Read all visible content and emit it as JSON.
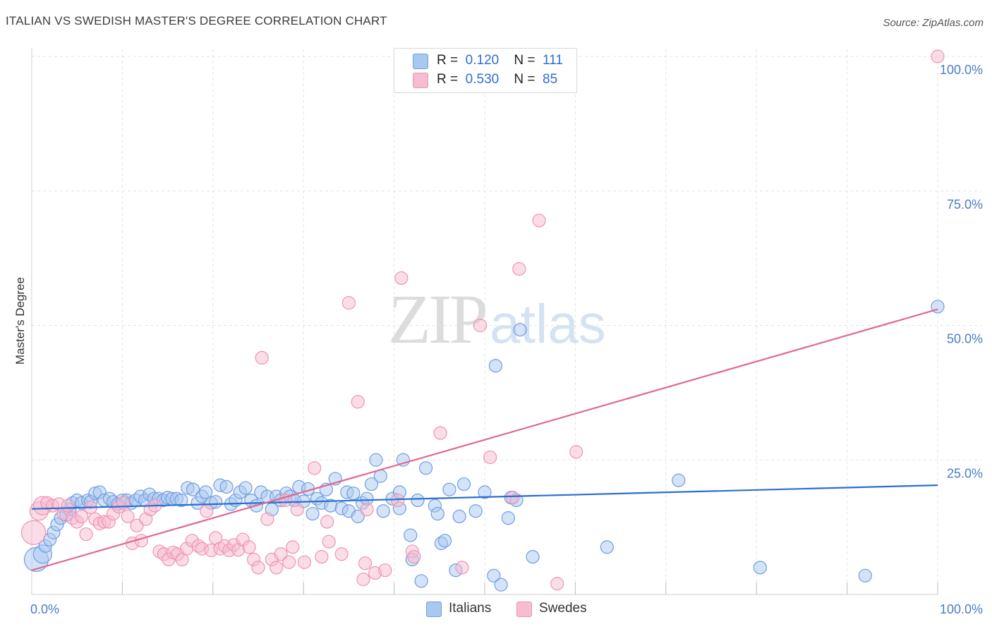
{
  "title": "ITALIAN VS SWEDISH MASTER'S DEGREE CORRELATION CHART",
  "source": "Source: ZipAtlas.com",
  "watermark": {
    "zip": "ZIP",
    "atlas": "atlas"
  },
  "legend": {
    "rows": [
      {
        "r_label": "R =",
        "r_value": "0.120",
        "n_label": "N =",
        "n_value": "111"
      },
      {
        "r_label": "R =",
        "r_value": "0.530",
        "n_label": "N =",
        "n_value": "85"
      }
    ]
  },
  "bottom_legend": [
    "Italians",
    "Swedes"
  ],
  "colors": {
    "italians_fill": "#a9c8f0",
    "italians_stroke": "#6f9ee0",
    "italians_line": "#2a6fcf",
    "swedes_fill": "#f6bcd0",
    "swedes_stroke": "#ef93b4",
    "swedes_line": "#e06892",
    "grid": "#e3e3e3",
    "tick_label": "#4a7cc7"
  },
  "chart_data": {
    "type": "scatter",
    "title": "ITALIAN VS SWEDISH MASTER'S DEGREE CORRELATION CHART",
    "xlabel": "",
    "ylabel": "Master's Degree",
    "xlim": [
      0,
      100
    ],
    "ylim": [
      0,
      100
    ],
    "x_tick_labels": [
      "0.0%",
      "100.0%"
    ],
    "y_ticks": [
      25,
      50,
      75,
      100
    ],
    "y_tick_labels": [
      "25.0%",
      "50.0%",
      "75.0%",
      "100.0%"
    ],
    "grid": true,
    "legend_position": "top-center",
    "series": [
      {
        "name": "Italians",
        "R": 0.12,
        "N": 111,
        "trend": {
          "x": [
            0,
            100
          ],
          "y": [
            15.9,
            20.3
          ]
        },
        "points": [
          [
            0.5,
            6.5
          ],
          [
            1.2,
            7.5
          ],
          [
            1.5,
            9
          ],
          [
            2,
            10.2
          ],
          [
            2.4,
            11.5
          ],
          [
            2.8,
            13
          ],
          [
            3.2,
            14.2
          ],
          [
            3.8,
            14.8
          ],
          [
            4.2,
            15.8
          ],
          [
            4.5,
            17
          ],
          [
            5,
            17.5
          ],
          [
            5.5,
            17
          ],
          [
            6.2,
            17.5
          ],
          [
            6.5,
            17.2
          ],
          [
            7,
            18.8
          ],
          [
            7.5,
            19
          ],
          [
            8,
            17.5
          ],
          [
            8.6,
            17.8
          ],
          [
            9,
            17.2
          ],
          [
            9.5,
            16.8
          ],
          [
            10,
            17.5
          ],
          [
            10.5,
            17.5
          ],
          [
            11,
            17
          ],
          [
            11.5,
            17.5
          ],
          [
            12,
            18.2
          ],
          [
            12.5,
            17.5
          ],
          [
            13,
            18.6
          ],
          [
            13.5,
            17.8
          ],
          [
            14,
            17.8
          ],
          [
            14.5,
            17.5
          ],
          [
            15,
            18
          ],
          [
            15.5,
            17.8
          ],
          [
            16,
            17.8
          ],
          [
            16.5,
            17.5
          ],
          [
            17.2,
            19.8
          ],
          [
            17.8,
            19.5
          ],
          [
            18.3,
            17
          ],
          [
            18.8,
            18.2
          ],
          [
            19.2,
            19
          ],
          [
            19.8,
            17
          ],
          [
            20.3,
            17.2
          ],
          [
            20.8,
            20.3
          ],
          [
            21.5,
            20
          ],
          [
            22,
            16.8
          ],
          [
            22.5,
            17.5
          ],
          [
            23,
            19
          ],
          [
            23.6,
            19.8
          ],
          [
            24.2,
            17.5
          ],
          [
            24.8,
            16.5
          ],
          [
            25.3,
            19
          ],
          [
            26,
            18.2
          ],
          [
            26.5,
            15.8
          ],
          [
            27,
            18.2
          ],
          [
            27.5,
            17.5
          ],
          [
            28.1,
            18.8
          ],
          [
            28.5,
            18.2
          ],
          [
            29,
            17.5
          ],
          [
            29.5,
            20
          ],
          [
            30,
            17.3
          ],
          [
            30.5,
            19.6
          ],
          [
            31,
            15
          ],
          [
            31.5,
            17.8
          ],
          [
            32,
            17
          ],
          [
            32.5,
            19.5
          ],
          [
            33,
            16.5
          ],
          [
            33.5,
            21.5
          ],
          [
            34.2,
            16
          ],
          [
            34.8,
            19
          ],
          [
            35,
            15.5
          ],
          [
            35.5,
            18.8
          ],
          [
            36,
            14.5
          ],
          [
            36.5,
            17
          ],
          [
            37,
            17.8
          ],
          [
            37.5,
            20.5
          ],
          [
            38,
            25
          ],
          [
            38.5,
            22
          ],
          [
            38.8,
            15.5
          ],
          [
            39.8,
            17.8
          ],
          [
            40.6,
            16
          ],
          [
            40.6,
            19
          ],
          [
            41,
            25
          ],
          [
            41.8,
            11
          ],
          [
            42,
            6.5
          ],
          [
            42.6,
            17.5
          ],
          [
            43,
            2.5
          ],
          [
            43.5,
            23.5
          ],
          [
            44.5,
            16.5
          ],
          [
            44.8,
            15
          ],
          [
            45.2,
            9.5
          ],
          [
            45.6,
            10
          ],
          [
            46.1,
            19.5
          ],
          [
            46.8,
            4.5
          ],
          [
            47.2,
            14.5
          ],
          [
            47.7,
            20.5
          ],
          [
            49,
            15.5
          ],
          [
            50,
            19
          ],
          [
            51,
            3.5
          ],
          [
            51.2,
            42.5
          ],
          [
            51.8,
            1.8
          ],
          [
            52.6,
            14.2
          ],
          [
            52.9,
            18
          ],
          [
            53.5,
            17.5
          ],
          [
            53.9,
            49.2
          ],
          [
            55.3,
            7
          ],
          [
            63.5,
            8.8
          ],
          [
            71.4,
            21.2
          ],
          [
            80.4,
            5
          ],
          [
            92,
            3.5
          ],
          [
            100,
            53.5
          ]
        ]
      },
      {
        "name": "Swedes",
        "R": 0.53,
        "N": 85,
        "trend": {
          "x": [
            0,
            100
          ],
          "y": [
            4.5,
            53
          ]
        },
        "points": [
          [
            0.2,
            11.5
          ],
          [
            0.8,
            15.5
          ],
          [
            1.2,
            16.5
          ],
          [
            1.7,
            17
          ],
          [
            2.3,
            16.5
          ],
          [
            3,
            16.8
          ],
          [
            3.5,
            15
          ],
          [
            4,
            16.5
          ],
          [
            4.5,
            14.2
          ],
          [
            5,
            13.5
          ],
          [
            5.5,
            14.5
          ],
          [
            6,
            11.2
          ],
          [
            6.5,
            16.2
          ],
          [
            7,
            14
          ],
          [
            7.5,
            13.2
          ],
          [
            8,
            13.5
          ],
          [
            8.5,
            13.5
          ],
          [
            9,
            15
          ],
          [
            9.6,
            16.3
          ],
          [
            10.1,
            17
          ],
          [
            10.6,
            14.5
          ],
          [
            11.1,
            9.5
          ],
          [
            11.6,
            12.8
          ],
          [
            12.1,
            10
          ],
          [
            12.6,
            14
          ],
          [
            13.1,
            15.8
          ],
          [
            13.6,
            16.5
          ],
          [
            14.1,
            8
          ],
          [
            14.6,
            7.5
          ],
          [
            15.1,
            6.5
          ],
          [
            15.6,
            7.8
          ],
          [
            16.1,
            7.5
          ],
          [
            16.6,
            6.5
          ],
          [
            17.1,
            8.5
          ],
          [
            17.7,
            10
          ],
          [
            18.4,
            9
          ],
          [
            18.8,
            8.5
          ],
          [
            19.3,
            15.5
          ],
          [
            19.8,
            8.2
          ],
          [
            20.3,
            10.5
          ],
          [
            20.8,
            8.5
          ],
          [
            21.3,
            9
          ],
          [
            21.8,
            8.2
          ],
          [
            22.3,
            9.2
          ],
          [
            22.8,
            8.3
          ],
          [
            23.3,
            10.2
          ],
          [
            24,
            8.8
          ],
          [
            24.5,
            6.5
          ],
          [
            25,
            5
          ],
          [
            25.4,
            44
          ],
          [
            26,
            14
          ],
          [
            26.5,
            6.5
          ],
          [
            27,
            5
          ],
          [
            27.5,
            7.5
          ],
          [
            28,
            17.5
          ],
          [
            28.4,
            6
          ],
          [
            28.8,
            8.8
          ],
          [
            29.3,
            15.8
          ],
          [
            30.1,
            6
          ],
          [
            31.2,
            23.5
          ],
          [
            32,
            7
          ],
          [
            32.6,
            13.5
          ],
          [
            32.8,
            9.8
          ],
          [
            34.2,
            7.5
          ],
          [
            35,
            54.2
          ],
          [
            36,
            35.8
          ],
          [
            36.6,
            2.8
          ],
          [
            36.8,
            5.8
          ],
          [
            37,
            15.8
          ],
          [
            37.9,
            4
          ],
          [
            39,
            4.5
          ],
          [
            40.4,
            17.5
          ],
          [
            40.8,
            58.8
          ],
          [
            42,
            8
          ],
          [
            42.2,
            7
          ],
          [
            45.1,
            30
          ],
          [
            47.5,
            5
          ],
          [
            49.5,
            50
          ],
          [
            50.6,
            25.5
          ],
          [
            53.1,
            18
          ],
          [
            53.8,
            60.5
          ],
          [
            56,
            69.5
          ],
          [
            58,
            2
          ],
          [
            60.1,
            26.5
          ],
          [
            100,
            100
          ]
        ]
      }
    ]
  }
}
